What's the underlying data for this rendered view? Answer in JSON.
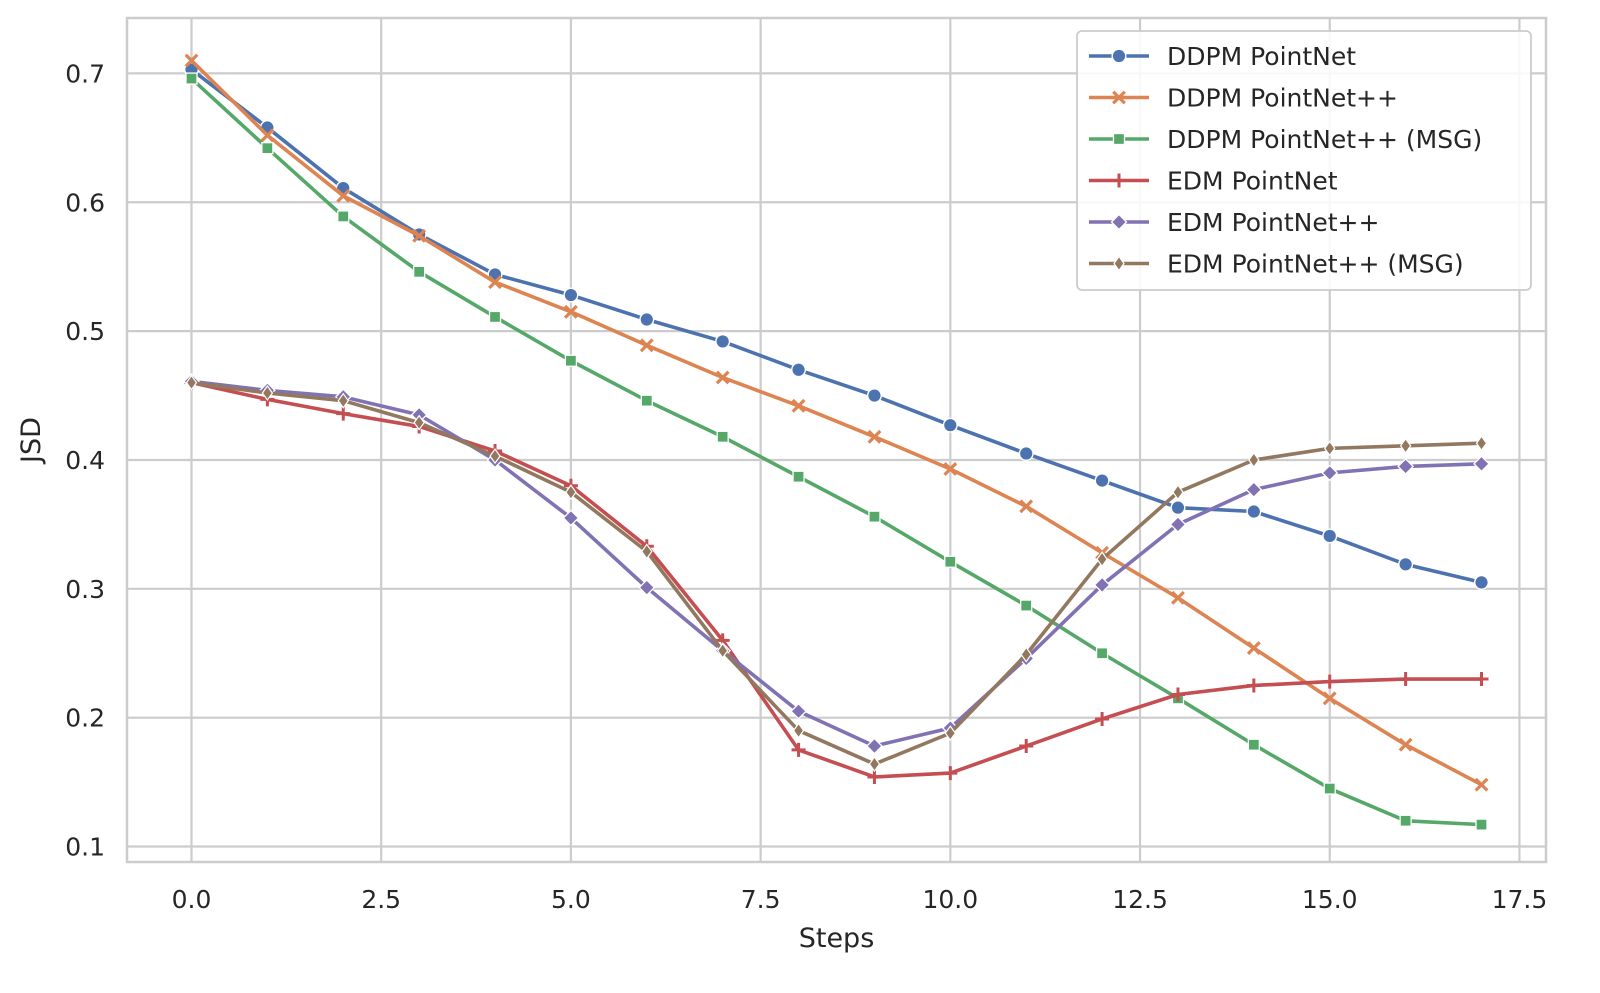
{
  "chart_data": {
    "type": "line",
    "title": "",
    "xlabel": "Steps",
    "ylabel": "JSD",
    "xlim": [
      -0.85,
      17.85
    ],
    "ylim": [
      0.088,
      0.743
    ],
    "xticks": [
      "0.0",
      "2.5",
      "5.0",
      "7.5",
      "10.0",
      "12.5",
      "15.0",
      "17.5"
    ],
    "xtick_values": [
      0,
      2.5,
      5,
      7.5,
      10,
      12.5,
      15,
      17.5
    ],
    "yticks": [
      "0.1",
      "0.2",
      "0.3",
      "0.4",
      "0.5",
      "0.6",
      "0.7"
    ],
    "ytick_values": [
      0.1,
      0.2,
      0.3,
      0.4,
      0.5,
      0.6,
      0.7
    ],
    "grid": true,
    "legend_position": "top-right",
    "x": [
      0,
      1,
      2,
      3,
      4,
      5,
      6,
      7,
      8,
      9,
      10,
      11,
      12,
      13,
      14,
      15,
      16,
      17
    ],
    "series": [
      {
        "name": "DDPM PointNet",
        "color": "#4c72b0",
        "marker": "circle",
        "values": [
          0.703,
          0.658,
          0.611,
          0.575,
          0.544,
          0.528,
          0.509,
          0.492,
          0.47,
          0.45,
          0.427,
          0.405,
          0.384,
          0.363,
          0.36,
          0.341,
          0.319,
          0.305
        ]
      },
      {
        "name": "DDPM PointNet++",
        "color": "#dd8452",
        "marker": "x",
        "values": [
          0.71,
          0.652,
          0.605,
          0.574,
          0.538,
          0.515,
          0.489,
          0.464,
          0.442,
          0.418,
          0.393,
          0.364,
          0.328,
          0.293,
          0.254,
          0.215,
          0.179,
          0.148
        ]
      },
      {
        "name": "DDPM PointNet++ (MSG)",
        "color": "#55a868",
        "marker": "square",
        "values": [
          0.696,
          0.642,
          0.589,
          0.546,
          0.511,
          0.477,
          0.446,
          0.418,
          0.387,
          0.356,
          0.321,
          0.287,
          0.25,
          0.215,
          0.179,
          0.145,
          0.12,
          0.117
        ]
      },
      {
        "name": "EDM PointNet",
        "color": "#c44e52",
        "marker": "plus",
        "values": [
          0.46,
          0.447,
          0.436,
          0.426,
          0.407,
          0.38,
          0.333,
          0.26,
          0.175,
          0.154,
          0.157,
          0.178,
          0.199,
          0.218,
          0.225,
          0.228,
          0.23,
          0.23
        ]
      },
      {
        "name": "EDM PointNet++",
        "color": "#8172b3",
        "marker": "diamond",
        "values": [
          0.461,
          0.454,
          0.449,
          0.435,
          0.4,
          0.355,
          0.301,
          0.252,
          0.205,
          0.178,
          0.192,
          0.246,
          0.303,
          0.35,
          0.377,
          0.39,
          0.395,
          0.397
        ]
      },
      {
        "name": "EDM PointNet++ (MSG)",
        "color": "#937860",
        "marker": "thin-diamond",
        "values": [
          0.46,
          0.452,
          0.446,
          0.429,
          0.403,
          0.375,
          0.329,
          0.252,
          0.19,
          0.164,
          0.188,
          0.249,
          0.323,
          0.375,
          0.4,
          0.409,
          0.411,
          0.413
        ]
      }
    ]
  }
}
